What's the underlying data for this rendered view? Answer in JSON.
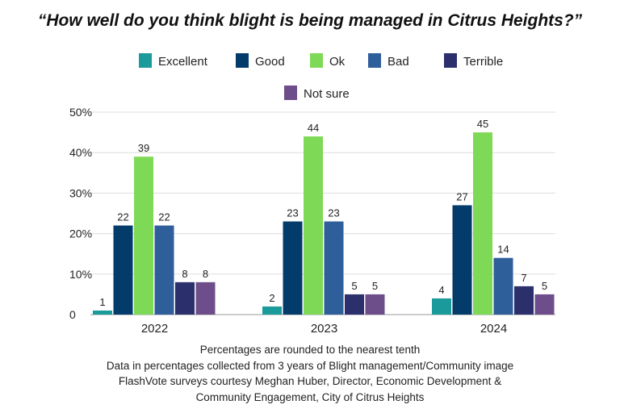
{
  "chart_data": {
    "type": "bar",
    "title": "“How well do you think blight is being managed in Citrus Heights?”",
    "categories": [
      "2022",
      "2023",
      "2024"
    ],
    "series": [
      {
        "name": "Excellent",
        "color": "#1a9a9a",
        "values": [
          1,
          2,
          4
        ]
      },
      {
        "name": "Good",
        "color": "#033b6b",
        "values": [
          22,
          23,
          27
        ]
      },
      {
        "name": "Ok",
        "color": "#7ed957",
        "values": [
          39,
          44,
          45
        ]
      },
      {
        "name": "Bad",
        "color": "#2f5f9b",
        "values": [
          22,
          23,
          14
        ]
      },
      {
        "name": "Terrible",
        "color": "#2b2f6b",
        "values": [
          8,
          5,
          7
        ]
      },
      {
        "name": "Not sure",
        "color": "#6e4e8a",
        "values": [
          8,
          5,
          5
        ]
      }
    ],
    "yticks": [
      "0",
      "10%",
      "20%",
      "30%",
      "40%",
      "50%"
    ],
    "ylim": [
      0,
      50
    ],
    "grid": true,
    "legend_position": "top",
    "footnote": [
      "Percentages are rounded to the nearest tenth",
      "Data in percentages collected from 3 years of Blight management/Community image",
      "FlashVote surveys courtesy Meghan Huber, Director, Economic Development &",
      "Community Engagement, City of Citrus Heights"
    ]
  }
}
